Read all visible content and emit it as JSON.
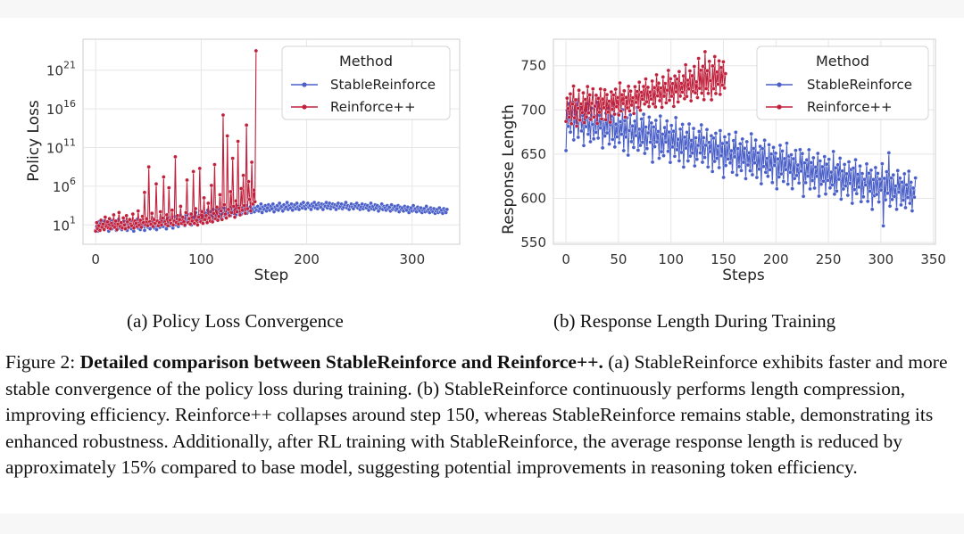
{
  "figure": {
    "subcaption_a": "(a) Policy Loss Convergence",
    "subcaption_b": "(b) Response Length During Training",
    "caption_label": "Figure 2:",
    "caption_bold": "Detailed comparison between StableReinforce and Reinforce++.",
    "caption_text": "(a) StableReinforce exhibits faster and more stable convergence of the policy loss during training. (b) StableReinforce continuously performs length compression, improving efficiency. Reinforce++ collapses around step 150, whereas StableReinforce remains stable, demonstrating its enhanced robustness. Additionally, after RL training with StableReinforce, the average response length is reduced by approximately 15% compared to base model, suggesting potential improvements in reasoning token efficiency."
  },
  "colors": {
    "stable": "#4a5fc8",
    "reinforce": "#c0213c",
    "grid": "#e6e6e6",
    "axes_bg": "#ffffff",
    "spine": "#cccccc"
  },
  "chart_data": [
    {
      "type": "line",
      "xlabel": "Step",
      "ylabel": "Policy Loss",
      "yscale": "log",
      "xlim": [
        -12,
        345
      ],
      "ylim_log10": [
        -1.5,
        25
      ],
      "xticks": [
        0,
        100,
        200,
        300
      ],
      "yticks": [
        {
          "base": "10",
          "exp": "1"
        },
        {
          "base": "10",
          "exp": "6"
        },
        {
          "base": "10",
          "exp": "11"
        },
        {
          "base": "10",
          "exp": "16"
        },
        {
          "base": "10",
          "exp": "21"
        }
      ],
      "ytick_log10": [
        1,
        6,
        11,
        16,
        21
      ],
      "grid": true,
      "legend": {
        "title": "Method",
        "placement": "upper-right",
        "entries": [
          "StableReinforce",
          "Reinforce++"
        ]
      },
      "series": [
        {
          "name": "StableReinforce",
          "x_range": [
            0,
            333
          ],
          "log10_values": [
            0.3,
            0.8,
            0.2,
            1.4,
            1.1,
            0.6,
            0.9,
            1.5,
            0.4,
            1.0,
            0.7,
            1.3,
            0.2,
            0.9,
            1.6,
            0.5,
            1.1,
            0.8,
            1.4,
            0.3,
            1.0,
            1.7,
            0.6,
            1.2,
            0.4,
            0.9,
            1.5,
            0.7,
            1.1,
            0.3,
            1.3,
            0.8,
            1.6,
            0.5,
            1.0,
            0.2,
            1.4,
            0.9,
            1.7,
            0.6,
            1.2,
            0.4,
            1.5,
            0.8,
            1.1,
            0.3,
            1.3,
            1.6,
            0.7,
            1.0,
            0.5,
            1.4,
            0.9,
            1.8,
            0.6,
            1.2,
            0.4,
            1.5,
            1.0,
            0.7,
            1.9,
            1.3,
            0.8,
            1.6,
            1.1,
            0.5,
            2.0,
            1.4,
            0.9,
            1.7,
            1.2,
            0.6,
            1.5,
            2.1,
            1.0,
            1.8,
            0.8,
            1.3,
            2.2,
            1.6,
            1.1,
            1.9,
            0.9,
            2.3,
            1.4,
            1.7,
            1.2,
            2.4,
            1.0,
            1.8,
            2.0,
            1.5,
            2.6,
            1.3,
            1.9,
            2.2,
            1.6,
            2.8,
            1.4,
            2.1,
            1.8,
            2.5,
            1.5,
            2.9,
            2.0,
            1.7,
            2.7,
            2.2,
            3.0,
            1.8,
            2.4,
            2.6,
            2.0,
            3.1,
            2.3,
            1.9,
            2.8,
            2.5,
            3.2,
            2.1,
            2.6,
            3.0,
            2.4,
            2.9,
            2.2,
            3.3,
            2.7,
            2.5,
            3.1,
            2.3,
            2.8,
            3.4,
            2.6,
            3.0,
            2.4,
            3.2,
            2.9,
            2.7,
            3.5,
            2.5,
            3.1,
            2.8,
            3.3,
            2.6,
            3.0,
            3.6,
            2.7,
            3.2,
            2.9,
            3.4,
            2.8,
            3.1,
            3.7,
            2.6,
            3.3,
            3.0,
            3.5,
            2.8,
            3.2,
            3.6,
            2.9,
            3.4,
            3.1,
            3.7,
            2.7,
            3.3,
            3.0,
            3.5,
            2.9,
            3.8,
            3.2,
            3.4,
            2.8,
            3.6,
            3.1,
            3.3,
            3.9,
            3.0,
            3.5,
            3.2,
            3.7,
            2.9,
            3.4,
            3.6,
            3.1,
            3.8,
            3.3,
            3.0,
            3.5,
            3.7,
            3.2,
            3.9,
            3.4,
            3.1,
            3.6,
            3.8,
            3.3,
            3.5,
            3.0,
            3.7,
            3.4,
            3.9,
            3.2,
            3.6,
            3.1,
            3.8,
            3.5,
            3.3,
            3.7,
            3.0,
            3.6,
            3.4,
            3.9,
            3.2,
            3.5,
            3.8,
            3.1,
            3.4,
            3.7,
            3.3,
            3.6,
            3.0,
            3.5,
            3.8,
            3.2,
            3.4,
            3.7,
            3.1,
            3.3,
            3.6,
            3.9,
            3.2,
            3.5,
            3.0,
            3.4,
            3.7,
            3.3,
            3.1,
            3.6,
            3.4,
            3.8,
            3.2,
            3.5,
            3.0,
            3.3,
            3.7,
            3.1,
            3.4,
            3.6,
            3.2,
            3.5,
            2.9,
            3.3,
            3.8,
            3.1,
            3.4,
            3.0,
            3.6,
            3.2,
            3.5,
            2.8,
            3.3,
            3.1,
            3.7,
            3.0,
            3.4,
            3.2,
            2.9,
            3.5,
            3.1,
            3.3,
            2.8,
            3.6,
            3.0,
            3.2,
            3.4,
            2.9,
            3.1,
            3.5,
            2.7,
            3.3,
            3.0,
            3.2,
            2.8,
            3.4,
            3.1,
            2.9,
            3.3,
            2.6,
            3.0,
            3.2,
            2.8,
            3.5,
            2.9,
            3.1,
            2.7,
            3.3,
            3.0,
            2.8,
            3.2,
            2.6,
            2.9,
            3.1,
            2.7,
            3.4,
            2.8,
            3.0,
            2.6,
            3.2,
            2.9,
            2.7,
            3.1,
            2.5,
            2.8,
            3.0,
            2.6,
            3.2,
            2.7,
            2.9,
            2.5,
            3.1,
            2.8,
            2.6,
            3.0
          ]
        },
        {
          "name": "Reinforce++",
          "x_range": [
            0,
            152
          ],
          "log10_values": [
            0.2,
            1.3,
            0.5,
            0.9,
            0.3,
            1.6,
            0.7,
            1.1,
            0.4,
            2.0,
            0.8,
            1.4,
            0.6,
            1.8,
            0.5,
            1.2,
            0.9,
            2.3,
            0.7,
            1.5,
            0.4,
            1.1,
            2.6,
            0.8,
            1.3,
            0.6,
            1.9,
            1.0,
            0.5,
            2.2,
            1.4,
            0.7,
            1.7,
            1.1,
            0.9,
            2.4,
            0.6,
            1.5,
            1.2,
            0.8,
            2.8,
            1.0,
            1.6,
            0.7,
            2.1,
            1.3,
            5.2,
            1.0,
            1.8,
            0.9,
            8.5,
            1.4,
            1.1,
            2.5,
            0.8,
            1.7,
            1.2,
            6.3,
            1.5,
            0.9,
            1.3,
            2.7,
            1.0,
            1.9,
            7.2,
            1.4,
            1.1,
            2.3,
            0.9,
            5.8,
            1.6,
            1.2,
            2.9,
            1.0,
            1.5,
            9.8,
            1.3,
            2.2,
            1.1,
            1.7,
            3.4,
            1.2,
            2.0,
            1.4,
            1.0,
            2.6,
            6.8,
            1.3,
            1.8,
            1.1,
            2.4,
            1.5,
            7.9,
            1.2,
            3.1,
            1.6,
            1.0,
            2.0,
            8.3,
            1.4,
            2.7,
            1.2,
            4.5,
            1.7,
            2.2,
            1.3,
            3.8,
            1.9,
            1.5,
            6.1,
            1.4,
            2.5,
            8.8,
            1.8,
            3.3,
            1.6,
            2.1,
            4.9,
            2.8,
            1.7,
            15.2,
            3.6,
            2.4,
            1.9,
            12.5,
            3.0,
            2.2,
            5.3,
            2.6,
            9.6,
            3.4,
            2.0,
            4.1,
            2.7,
            11.8,
            3.2,
            2.3,
            5.7,
            2.9,
            7.4,
            3.5,
            2.5,
            13.9,
            3.1,
            6.6,
            4.3,
            2.8,
            9.1,
            3.7,
            5.5,
            4.0,
            23.5
          ]
        }
      ]
    },
    {
      "type": "line",
      "xlabel": "Steps",
      "ylabel": "Response Length",
      "xlim": [
        -12,
        352
      ],
      "ylim": [
        548,
        780
      ],
      "xticks": [
        0,
        50,
        100,
        150,
        200,
        250,
        300,
        350
      ],
      "yticks": [
        550,
        600,
        650,
        700,
        750
      ],
      "grid": true,
      "legend": {
        "title": "Method",
        "placement": "upper-right",
        "entries": [
          "StableReinforce",
          "Reinforce++"
        ]
      },
      "series": [
        {
          "name": "StableReinforce",
          "x_range": [
            0,
            333
          ],
          "trend_start": 690,
          "trend_end": 605,
          "noise": [
            -36,
            10,
            -8,
            18,
            -14,
            4,
            20,
            -22,
            12,
            -6,
            24,
            -18,
            2,
            16,
            -10,
            8,
            -26,
            14,
            -4,
            22,
            -12,
            6,
            -20,
            18,
            0,
            -16,
            10,
            -8,
            26,
            -14,
            12,
            -2,
            20,
            -24,
            8,
            -10,
            16,
            -6,
            22,
            -18,
            4,
            14,
            -12,
            28,
            -20,
            6,
            -8,
            18,
            -14,
            10,
            -4,
            24,
            -22,
            12,
            -6,
            16,
            -26,
            2,
            20,
            -10,
            8,
            -16,
            14,
            -2,
            30,
            -18,
            6,
            -12,
            18,
            -8,
            24,
            -20,
            10,
            -14,
            4,
            22,
            -6,
            16,
            -28,
            12,
            -10,
            20,
            -4,
            8,
            -22,
            26,
            -14,
            6,
            -18,
            14,
            -2,
            22,
            -12,
            10,
            -24,
            18,
            -6,
            12,
            -16,
            28,
            -8,
            4,
            -20,
            16,
            -10,
            22,
            -26,
            8,
            -4,
            14,
            -18,
            24,
            -12,
            6,
            -8,
            20,
            -22,
            10,
            -14,
            2,
            18,
            -6,
            26,
            -16,
            12,
            -10,
            4,
            22,
            -20,
            8,
            -2,
            16,
            -24,
            14,
            -12,
            20,
            -8,
            6,
            -18,
            24,
            -4,
            10,
            -28,
            18,
            -14,
            12,
            -6,
            22,
            -10,
            4,
            -20,
            16,
            -2,
            26,
            -22,
            8,
            -12,
            14,
            -16,
            20,
            -6,
            10,
            -24,
            18,
            -8,
            6,
            -14,
            28,
            -18,
            12,
            -4,
            22,
            -20,
            8,
            -10,
            16,
            -26,
            14,
            -6,
            24,
            -12,
            4,
            -16,
            20,
            -8,
            10,
            -22,
            18,
            -2,
            12,
            -28,
            6,
            -14,
            22,
            -10,
            16,
            -18,
            8,
            -4,
            26,
            -20,
            12,
            -6,
            14,
            -24,
            10,
            -12,
            20,
            -8,
            4,
            -16,
            22,
            -2,
            18,
            -30,
            8,
            -14,
            12,
            -6,
            24,
            -20,
            10,
            -10,
            16,
            -18,
            6,
            -4,
            22,
            -26,
            14,
            -12,
            8,
            -8,
            20,
            -22,
            12,
            -6,
            18,
            -14,
            4,
            -10,
            28,
            -20,
            10,
            -16,
            14,
            -2,
            22,
            -24,
            8,
            -12,
            16,
            -8,
            6,
            -18,
            20,
            -4,
            12,
            -26,
            14,
            -10,
            24,
            -14,
            8,
            -6,
            18,
            -22,
            10,
            -16,
            4,
            -2,
            22,
            -20,
            12,
            -8,
            16,
            -28,
            6,
            -12,
            20,
            -10,
            14,
            -18,
            8,
            -4,
            26,
            -44,
            10,
            -14,
            18,
            -6,
            40,
            -20,
            12,
            -12,
            16,
            -8,
            4,
            -22,
            22,
            -2,
            14,
            -16,
            10,
            -10,
            20,
            -18,
            8,
            -6,
            24,
            -12,
            12,
            -20,
            6,
            -4,
            18
          ]
        },
        {
          "name": "Reinforce++",
          "x_range": [
            0,
            152
          ],
          "trend_start": 695,
          "trend_end": 735,
          "noise": [
            -8,
            18,
            6,
            -4,
            22,
            -12,
            10,
            30,
            -6,
            14,
            -16,
            4,
            24,
            -10,
            8,
            -2,
            20,
            -14,
            12,
            -8,
            26,
            -4,
            16,
            -12,
            6,
            22,
            -10,
            2,
            14,
            -18,
            10,
            -6,
            20,
            -14,
            8,
            -2,
            18,
            -16,
            12,
            -8,
            4,
            -20,
            14,
            -6,
            10,
            -12,
            16,
            -4,
            6,
            -14,
            22,
            -10,
            8,
            -2,
            12,
            -18,
            4,
            -8,
            16,
            -12,
            10,
            -6,
            2,
            -16,
            14,
            -4,
            8,
            -10,
            18,
            -14,
            6,
            -2,
            12,
            -8,
            20,
            -6,
            10,
            -12,
            4,
            -4,
            16,
            -10,
            8,
            -14,
            22,
            -2,
            12,
            -8,
            6,
            -16,
            18,
            -4,
            10,
            -12,
            2,
            24,
            -10,
            14,
            -6,
            8,
            -18,
            16,
            -2,
            12,
            -14,
            20,
            -8,
            6,
            -4,
            14,
            -12,
            26,
            -10,
            8,
            -2,
            18,
            -16,
            12,
            -6,
            22,
            -8,
            4,
            -14,
            30,
            -4,
            16,
            -10,
            20,
            -18,
            36,
            -6,
            14,
            -12,
            24,
            2,
            -20,
            18,
            -8,
            28,
            -14,
            10,
            -4,
            22,
            -16,
            14,
            -6,
            20,
            -10,
            6
          ]
        }
      ]
    }
  ]
}
